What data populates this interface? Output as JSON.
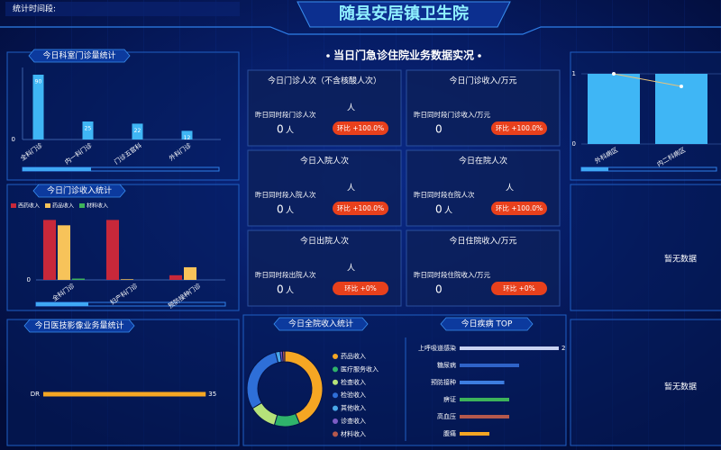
{
  "header": {
    "title": "随县安居镇卫生院",
    "period_label": "统计时间段:"
  },
  "center_title": "当日门急诊住院业务数据实况",
  "kpis": [
    {
      "title": "今日门诊人次（不含核酸人次）",
      "unit": "人",
      "compare_label": "昨日同时段门诊人次",
      "compare_value": 0,
      "compare_unit": "人",
      "ratio_label": "环比 +100.0%"
    },
    {
      "title": "今日门诊收入/万元",
      "compare_label": "昨日同时段门诊收入/万元",
      "compare_value": 0,
      "ratio_label": "环比 +100.0%"
    },
    {
      "title": "今日入院人次",
      "unit": "人",
      "compare_label": "昨日同时段入院人次",
      "compare_value": 0,
      "compare_unit": "人",
      "ratio_label": "环比 +100.0%"
    },
    {
      "title": "今日在院人次",
      "unit": "人",
      "compare_label": "昨日同时段在院人次",
      "compare_value": 0,
      "compare_unit": "人",
      "ratio_label": "环比 +100.0%"
    },
    {
      "title": "今日出院人次",
      "unit": "人",
      "compare_label": "昨日同时段出院人次",
      "compare_value": 0,
      "compare_unit": "人",
      "ratio_label": "环比 +0%"
    },
    {
      "title": "今日住院收入/万元",
      "compare_label": "昨日同时段住院收入/万元",
      "compare_value": 0,
      "ratio_label": "环比 +0%"
    }
  ],
  "dept_visits": {
    "type": "bar",
    "title": "今日科室门诊量统计",
    "categories": [
      "全科门诊",
      "内一科门诊",
      "门诊五官科",
      "外科门诊"
    ],
    "values": [
      90,
      25,
      22,
      12
    ],
    "color": "#3fb6f5",
    "ylim": [
      0,
      100
    ],
    "yticks": [
      0
    ]
  },
  "dept_income": {
    "type": "bar",
    "title": "今日门诊收入统计",
    "categories": [
      "全科门诊",
      "妇产科门诊",
      "预防接种门诊"
    ],
    "series": [
      {
        "name": "西药收入",
        "color": "#c8283a",
        "values": [
          90,
          90,
          7
        ]
      },
      {
        "name": "药品收入",
        "color": "#f7c35a",
        "values": [
          82,
          1,
          19
        ]
      },
      {
        "name": "材料收入",
        "color": "#3db35a",
        "values": [
          2,
          0,
          0
        ]
      }
    ],
    "ylim": [
      0,
      100
    ],
    "yticks": [
      0
    ]
  },
  "imaging": {
    "type": "hbar",
    "title": "今日医技影像业务量统计",
    "categories": [
      "DR"
    ],
    "values": [
      35
    ],
    "color": "#f5a623",
    "xlim": [
      0,
      40
    ]
  },
  "ward": {
    "type": "bar",
    "categories": [
      "外科病区",
      "内二科病区"
    ],
    "values": [
      1,
      1
    ],
    "line_values": [
      1,
      0.82
    ],
    "color": "#3fb6f5",
    "line_color": "#e6c27a",
    "ylim": [
      0,
      1
    ],
    "yticks": [
      0,
      1
    ]
  },
  "no_data": [
    "暂无数据",
    "暂无数据"
  ],
  "income_share": {
    "type": "pie",
    "title": "今日全院收入统计",
    "categories": [
      "药品收入",
      "医疗服务收入",
      "检查收入",
      "检验收入",
      "其他收入",
      "诊查收入",
      "材料收入"
    ],
    "values": [
      44,
      11,
      12,
      30,
      2,
      1,
      1
    ],
    "colors": [
      "#f5a623",
      "#2fb36b",
      "#b5e27a",
      "#2e6fd8",
      "#4aa8e8",
      "#7c5cc4",
      "#b5584c"
    ]
  },
  "disease_top": {
    "type": "hbar",
    "title": "今日疾病 TOP",
    "categories": [
      "上呼吸道感染",
      "糖尿病",
      "预防接种",
      "痹证",
      "高血压",
      "腹痛"
    ],
    "values": [
      2,
      1.2,
      0.9,
      1,
      1,
      0.6
    ],
    "value_labels": [
      "2",
      null,
      null,
      null,
      null,
      null
    ],
    "colors": [
      "#c9d3f2",
      "#2f63c8",
      "#3d7de0",
      "#3db35a",
      "#b5584c",
      "#f5a623"
    ],
    "xlim": [
      0,
      2
    ]
  }
}
